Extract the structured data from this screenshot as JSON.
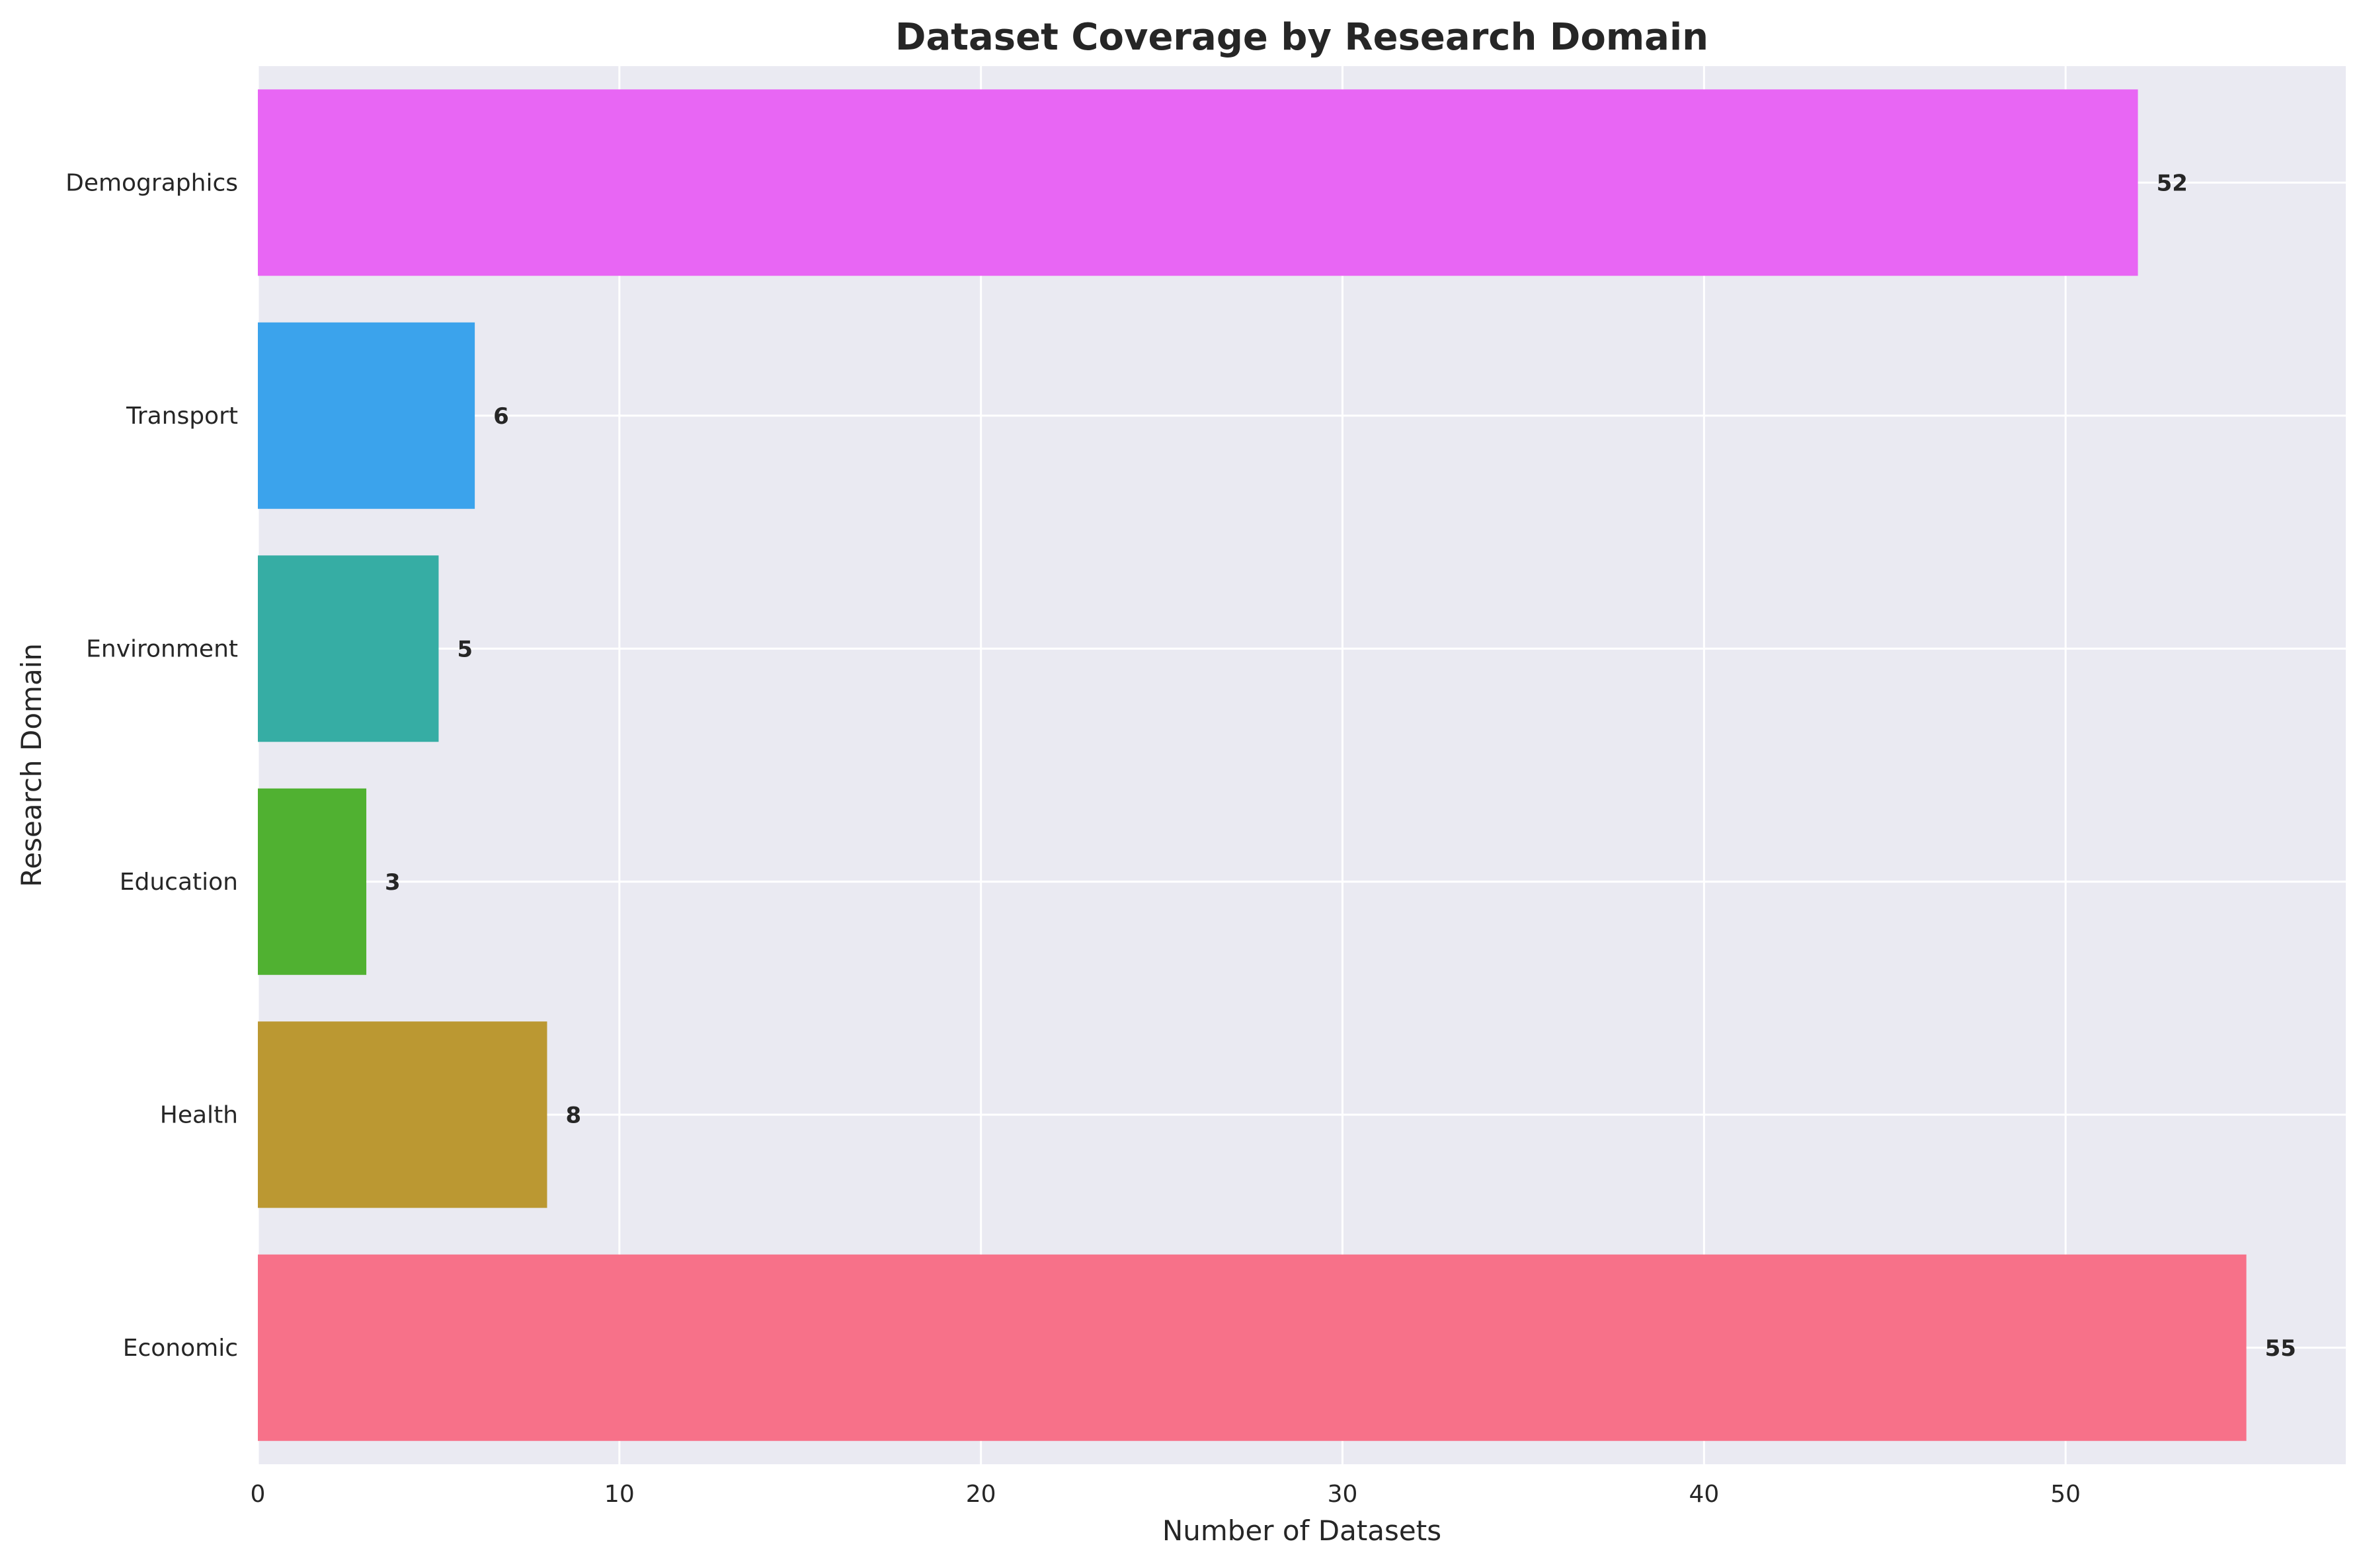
{
  "chart_data": {
    "type": "bar",
    "orientation": "horizontal",
    "title": "Dataset Coverage by Research Domain",
    "xlabel": "Number of Datasets",
    "ylabel": "Research Domain",
    "categories": [
      "Economic",
      "Health",
      "Education",
      "Environment",
      "Transport",
      "Demographics"
    ],
    "values": [
      55,
      8,
      3,
      5,
      6,
      52
    ],
    "value_labels": [
      "55",
      "8",
      "3",
      "5",
      "6",
      "52"
    ],
    "colors": [
      "#f77189",
      "#bb9832",
      "#50b131",
      "#36ada4",
      "#3ba3ec",
      "#e866f4"
    ],
    "xticks": [
      0,
      10,
      20,
      30,
      40,
      50
    ],
    "xtick_labels": [
      "0",
      "10",
      "20",
      "30",
      "40",
      "50"
    ],
    "xlim": [
      0,
      57.75
    ],
    "grid": true,
    "legend": "none",
    "background_color": "#eaeaf2",
    "grid_color": "#ffffff"
  }
}
